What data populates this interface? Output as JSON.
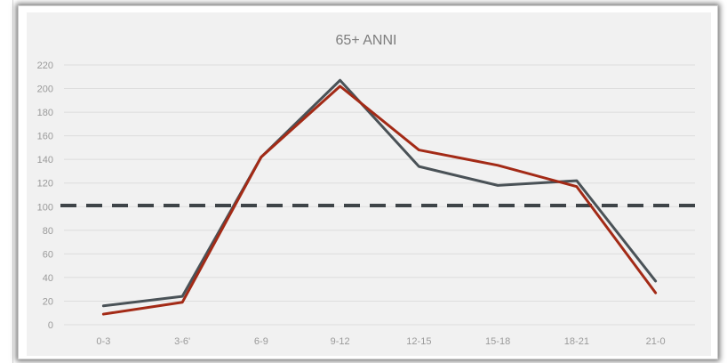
{
  "chart_data": {
    "type": "line",
    "title": "65+ ANNI",
    "xlabel": "",
    "ylabel": "",
    "categories": [
      "0-3",
      "3-6'",
      "6-9",
      "9-12",
      "12-15",
      "15-18",
      "18-21",
      "21-0"
    ],
    "ylim": [
      0,
      220
    ],
    "yticks": [
      0,
      20,
      40,
      60,
      80,
      100,
      120,
      140,
      160,
      180,
      200,
      220
    ],
    "grid": true,
    "legend": "none",
    "series": [
      {
        "color": "#4a5257",
        "values": [
          16,
          24,
          142,
          207,
          134,
          118,
          122,
          37
        ]
      },
      {
        "color": "#a32a16",
        "values": [
          9,
          19,
          142,
          202,
          148,
          135,
          117,
          27
        ]
      }
    ],
    "reference_line": {
      "value": 101,
      "style": "dashed",
      "color": "#3e4448"
    }
  }
}
